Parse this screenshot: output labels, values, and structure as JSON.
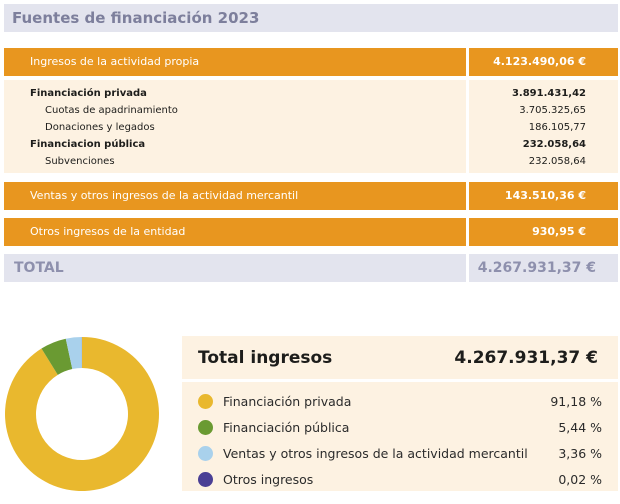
{
  "title": "Fuentes de financiación 2023",
  "income_table": {
    "ingresos_propia": {
      "label": "Ingresos de la actividad propia",
      "value": "4.123.490,06 €"
    },
    "details": [
      {
        "label": "Financiación privada",
        "value": "3.891.431,42",
        "bold": true
      },
      {
        "label": "Cuotas de apadrinamiento",
        "value": "3.705.325,65",
        "bold": false
      },
      {
        "label": "Donaciones y legados",
        "value": "186.105,77",
        "bold": false
      },
      {
        "label": "Financiacion pública",
        "value": "232.058,64",
        "bold": true
      },
      {
        "label": "Subvenciones",
        "value": "232.058,64",
        "bold": false
      }
    ],
    "ventas": {
      "label": "Ventas y otros ingresos de la actividad mercantil",
      "value": "143.510,36 €"
    },
    "otros": {
      "label": "Otros ingresos de la entidad",
      "value": "930,95 €"
    },
    "total": {
      "label": "TOTAL",
      "value": "4.267.931,37 €"
    }
  },
  "chart_data": {
    "type": "pie",
    "categories": [
      "Financiación privada",
      "Financiación pública",
      "Ventas y otros ingresos de la actividad mercantil",
      "Otros ingresos"
    ],
    "values": [
      91.18,
      5.44,
      3.36,
      0.02
    ],
    "colors": [
      "#e9b82e",
      "#6a9a32",
      "#a9d1ec",
      "#4a3f95"
    ],
    "title": "Total ingresos",
    "total": "4.267.931,37 €",
    "labels": [
      "91,18 %",
      "5,44 %",
      "3,36 %",
      "0,02 %"
    ]
  }
}
